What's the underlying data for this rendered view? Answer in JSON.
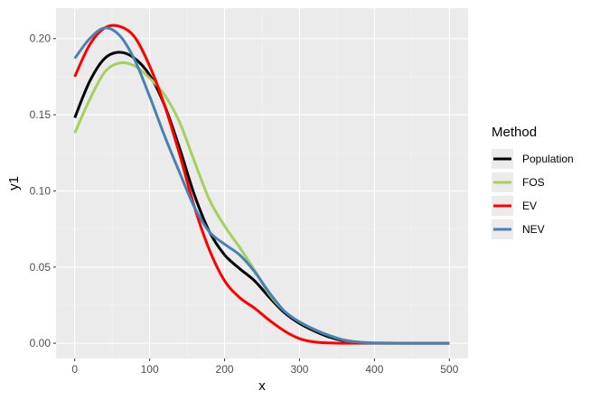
{
  "chart_data": {
    "type": "line",
    "title": "",
    "xlabel": "x",
    "ylabel": "y1",
    "xlim": [
      -25,
      525
    ],
    "ylim": [
      -0.01,
      0.22
    ],
    "x_ticks": [
      0,
      100,
      200,
      300,
      400,
      500
    ],
    "x_tick_labels": [
      "0",
      "100",
      "200",
      "300",
      "400",
      "500"
    ],
    "y_ticks": [
      0.0,
      0.05,
      0.1,
      0.15,
      0.2
    ],
    "y_tick_labels": [
      "0.00",
      "0.05",
      "0.10",
      "0.15",
      "0.20"
    ],
    "grid": true,
    "legend": {
      "title": "Method",
      "position": "right"
    },
    "series": [
      {
        "name": "Population",
        "color": "#000000",
        "x": [
          0,
          20,
          40,
          60,
          80,
          100,
          120,
          140,
          160,
          180,
          200,
          220,
          240,
          260,
          280,
          300,
          320,
          340,
          360,
          380,
          400,
          450,
          500
        ],
        "y": [
          0.148,
          0.172,
          0.187,
          0.191,
          0.187,
          0.176,
          0.156,
          0.128,
          0.097,
          0.073,
          0.058,
          0.049,
          0.041,
          0.03,
          0.02,
          0.013,
          0.008,
          0.004,
          0.0015,
          0.0005,
          0.0001,
          0.0,
          0.0
        ]
      },
      {
        "name": "FOS",
        "color": "#a6d05c",
        "x": [
          0,
          20,
          40,
          60,
          80,
          100,
          120,
          140,
          160,
          180,
          200,
          220,
          240,
          260,
          280,
          300,
          320,
          340,
          360,
          380,
          400,
          450,
          500
        ],
        "y": [
          0.138,
          0.16,
          0.178,
          0.184,
          0.182,
          0.174,
          0.163,
          0.145,
          0.119,
          0.094,
          0.077,
          0.063,
          0.048,
          0.032,
          0.021,
          0.014,
          0.009,
          0.005,
          0.002,
          0.0008,
          0.0002,
          0.0,
          0.0
        ]
      },
      {
        "name": "EV",
        "color": "#ff0000",
        "x": [
          0,
          20,
          40,
          60,
          80,
          100,
          120,
          140,
          160,
          180,
          200,
          220,
          240,
          260,
          280,
          300,
          320,
          340,
          360,
          380,
          400,
          450,
          500
        ],
        "y": [
          0.175,
          0.196,
          0.207,
          0.208,
          0.201,
          0.182,
          0.156,
          0.124,
          0.089,
          0.061,
          0.041,
          0.03,
          0.023,
          0.015,
          0.008,
          0.003,
          0.0008,
          0.0002,
          0.0,
          0.0,
          0.0,
          0.0,
          0.0
        ]
      },
      {
        "name": "NEV",
        "color": "#4682b4",
        "x": [
          0,
          20,
          40,
          60,
          80,
          100,
          120,
          140,
          160,
          180,
          200,
          220,
          240,
          260,
          280,
          300,
          320,
          340,
          360,
          380,
          400,
          450,
          500
        ],
        "y": [
          0.187,
          0.2,
          0.207,
          0.202,
          0.186,
          0.162,
          0.136,
          0.112,
          0.089,
          0.073,
          0.065,
          0.058,
          0.047,
          0.033,
          0.021,
          0.014,
          0.009,
          0.005,
          0.002,
          0.0007,
          0.0002,
          0.0,
          0.0
        ]
      }
    ]
  }
}
